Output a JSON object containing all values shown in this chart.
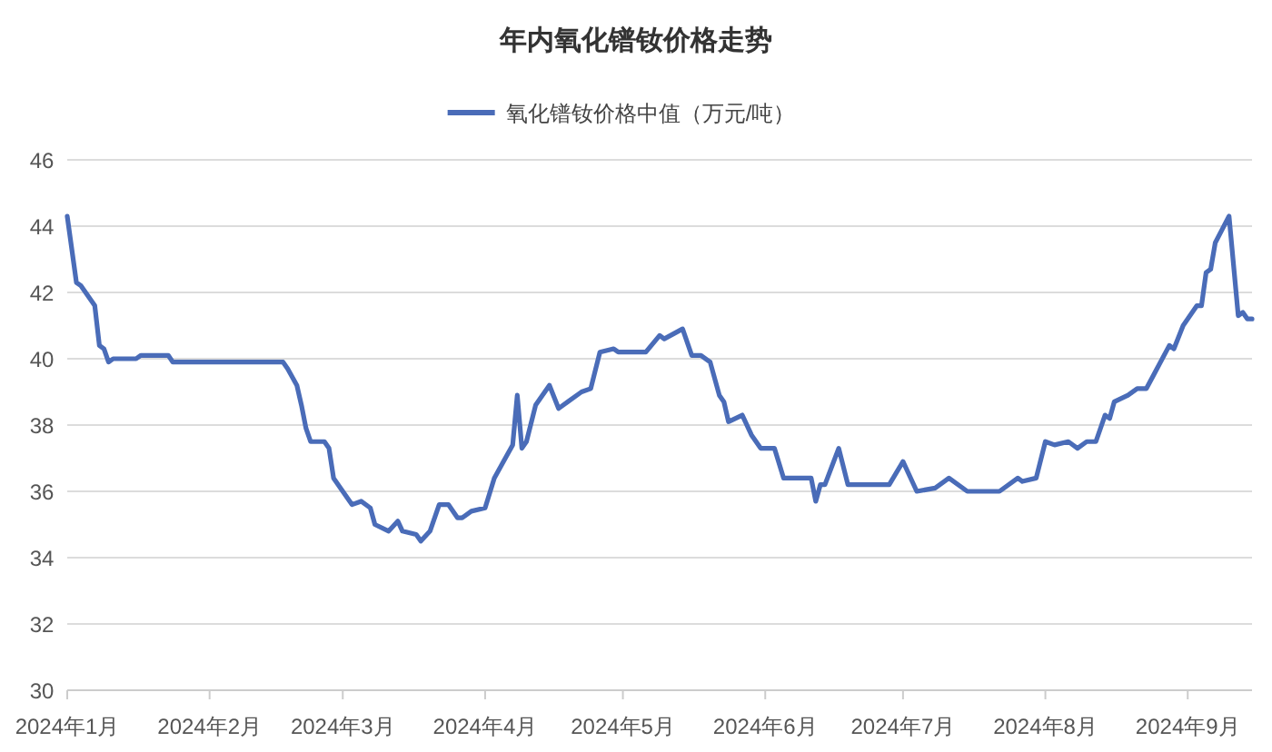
{
  "chart_data": {
    "type": "line",
    "title": "年内氧化镨钕价格走势",
    "legend": "top",
    "grid": "y",
    "marker": "none",
    "line_style": "solid",
    "x": [
      "2024-01-01",
      "2024-01-03",
      "2024-01-04",
      "2024-01-07",
      "2024-01-08",
      "2024-01-09",
      "2024-01-10",
      "2024-01-11",
      "2024-01-16",
      "2024-01-17",
      "2024-01-23",
      "2024-01-24",
      "2024-02-17",
      "2024-02-18",
      "2024-02-20",
      "2024-02-21",
      "2024-02-22",
      "2024-02-23",
      "2024-02-26",
      "2024-02-27",
      "2024-02-28",
      "2024-02-29",
      "2024-03-03",
      "2024-03-05",
      "2024-03-07",
      "2024-03-08",
      "2024-03-11",
      "2024-03-13",
      "2024-03-14",
      "2024-03-17",
      "2024-03-18",
      "2024-03-20",
      "2024-03-22",
      "2024-03-24",
      "2024-03-26",
      "2024-03-27",
      "2024-03-29",
      "2024-04-01",
      "2024-04-03",
      "2024-04-07",
      "2024-04-08",
      "2024-04-09",
      "2024-04-10",
      "2024-04-12",
      "2024-04-15",
      "2024-04-17",
      "2024-04-19",
      "2024-04-22",
      "2024-04-24",
      "2024-04-26",
      "2024-04-29",
      "2024-04-30",
      "2024-05-06",
      "2024-05-09",
      "2024-05-10",
      "2024-05-14",
      "2024-05-16",
      "2024-05-18",
      "2024-05-20",
      "2024-05-22",
      "2024-05-23",
      "2024-05-24",
      "2024-05-27",
      "2024-05-29",
      "2024-05-31",
      "2024-06-03",
      "2024-06-05",
      "2024-06-11",
      "2024-06-12",
      "2024-06-13",
      "2024-06-14",
      "2024-06-17",
      "2024-06-19",
      "2024-06-28",
      "2024-07-01",
      "2024-07-04",
      "2024-07-08",
      "2024-07-11",
      "2024-07-15",
      "2024-07-22",
      "2024-07-26",
      "2024-07-27",
      "2024-07-30",
      "2024-08-01",
      "2024-08-03",
      "2024-08-06",
      "2024-08-08",
      "2024-08-10",
      "2024-08-12",
      "2024-08-14",
      "2024-08-15",
      "2024-08-16",
      "2024-08-19",
      "2024-08-21",
      "2024-08-23",
      "2024-08-28",
      "2024-08-29",
      "2024-08-31",
      "2024-09-03",
      "2024-09-04",
      "2024-09-05",
      "2024-09-06",
      "2024-09-07",
      "2024-09-10",
      "2024-09-12",
      "2024-09-13",
      "2024-09-14",
      "2024-09-15"
    ],
    "series": [
      {
        "name": "氧化镨钕价格中值（万元/吨）",
        "color": "#4a6cb8",
        "values": [
          44.3,
          42.3,
          42.2,
          41.6,
          40.4,
          40.3,
          39.9,
          40.0,
          40.0,
          40.1,
          40.1,
          39.9,
          39.9,
          39.7,
          39.2,
          38.6,
          37.9,
          37.5,
          37.5,
          37.3,
          36.4,
          36.2,
          35.6,
          35.7,
          35.5,
          35.0,
          34.8,
          35.1,
          34.8,
          34.7,
          34.5,
          34.8,
          35.6,
          35.6,
          35.2,
          35.2,
          35.4,
          35.5,
          36.4,
          37.4,
          38.9,
          37.3,
          37.5,
          38.6,
          39.2,
          38.5,
          38.7,
          39.0,
          39.1,
          40.2,
          40.3,
          40.2,
          40.2,
          40.7,
          40.6,
          40.9,
          40.1,
          40.1,
          39.9,
          38.9,
          38.7,
          38.1,
          38.3,
          37.7,
          37.3,
          37.3,
          36.4,
          36.4,
          35.7,
          36.2,
          36.2,
          37.3,
          36.2,
          36.2,
          36.9,
          36.0,
          36.1,
          36.4,
          36.0,
          36.0,
          36.4,
          36.3,
          36.4,
          37.5,
          37.4,
          37.5,
          37.3,
          37.5,
          37.5,
          38.3,
          38.2,
          38.7,
          38.9,
          39.1,
          39.1,
          40.4,
          40.3,
          41.0,
          41.6,
          41.6,
          42.6,
          42.7,
          43.5,
          44.3,
          41.3,
          41.4,
          41.2,
          41.2
        ]
      }
    ],
    "xlim": [
      "2024-01-01",
      "2024-09-15"
    ],
    "xticks": [
      {
        "value": "2024-01-01",
        "label": "2024年1月"
      },
      {
        "value": "2024-02-01",
        "label": "2024年2月"
      },
      {
        "value": "2024-03-01",
        "label": "2024年3月"
      },
      {
        "value": "2024-04-01",
        "label": "2024年4月"
      },
      {
        "value": "2024-05-01",
        "label": "2024年5月"
      },
      {
        "value": "2024-06-01",
        "label": "2024年6月"
      },
      {
        "value": "2024-07-01",
        "label": "2024年7月"
      },
      {
        "value": "2024-08-01",
        "label": "2024年8月"
      },
      {
        "value": "2024-09-01",
        "label": "2024年9月"
      }
    ],
    "ylim": [
      30,
      46
    ],
    "yticks": [
      30,
      32,
      34,
      36,
      38,
      40,
      42,
      44,
      46
    ]
  }
}
